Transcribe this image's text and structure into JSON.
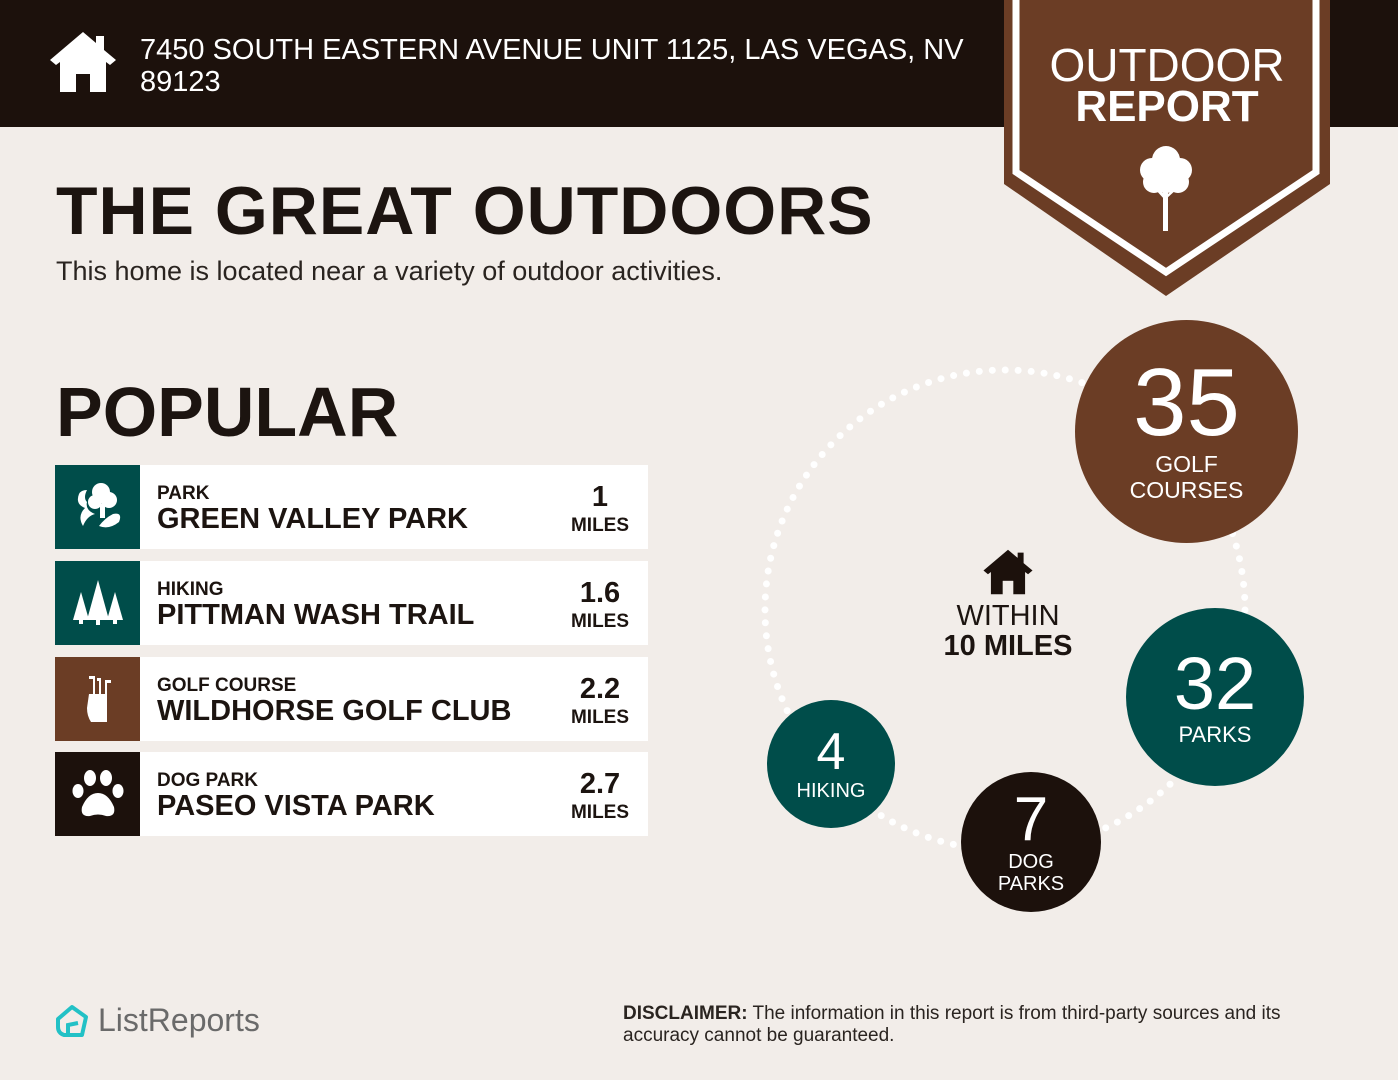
{
  "header": {
    "address": "7450 SOUTH EASTERN AVENUE UNIT 1125, LAS VEGAS, NV 89123",
    "icon": "home-icon"
  },
  "badge": {
    "line1": "OUTDOOR",
    "line2": "REPORT",
    "icon": "tree-icon"
  },
  "main": {
    "title": "THE GREAT OUTDOORS",
    "subtitle": "This home is located near a variety of outdoor activities.",
    "popular_heading": "POPULAR"
  },
  "popular": [
    {
      "category": "PARK",
      "name": "GREEN VALLEY PARK",
      "distance": "1",
      "unit": "MILES",
      "icon": "park-icon",
      "color": "#004d4a"
    },
    {
      "category": "HIKING",
      "name": "PITTMAN WASH TRAIL",
      "distance": "1.6",
      "unit": "MILES",
      "icon": "pine-trees-icon",
      "color": "#004d4a"
    },
    {
      "category": "GOLF COURSE",
      "name": "WILDHORSE GOLF CLUB",
      "distance": "2.2",
      "unit": "MILES",
      "icon": "golf-bag-icon",
      "color": "#6b3d25"
    },
    {
      "category": "DOG PARK",
      "name": "PASEO VISTA PARK",
      "distance": "2.7",
      "unit": "MILES",
      "icon": "paw-icon",
      "color": "#1c110c"
    }
  ],
  "radius": {
    "line1": "WITHIN",
    "line2": "10 MILES"
  },
  "counts": {
    "golf": {
      "value": "35",
      "label1": "GOLF",
      "label2": "COURSES",
      "color": "#6b3d25"
    },
    "parks": {
      "value": "32",
      "label1": "PARKS",
      "color": "#004d4a"
    },
    "dog": {
      "value": "7",
      "label1": "DOG",
      "label2": "PARKS",
      "color": "#1c110c"
    },
    "hiking": {
      "value": "4",
      "label1": "HIKING",
      "color": "#004d4a"
    }
  },
  "footer": {
    "logo_text": "ListReports",
    "disclaimer_label": "DISCLAIMER:",
    "disclaimer_text": " The information in this report is from third-party sources and its accuracy cannot be guaranteed."
  }
}
